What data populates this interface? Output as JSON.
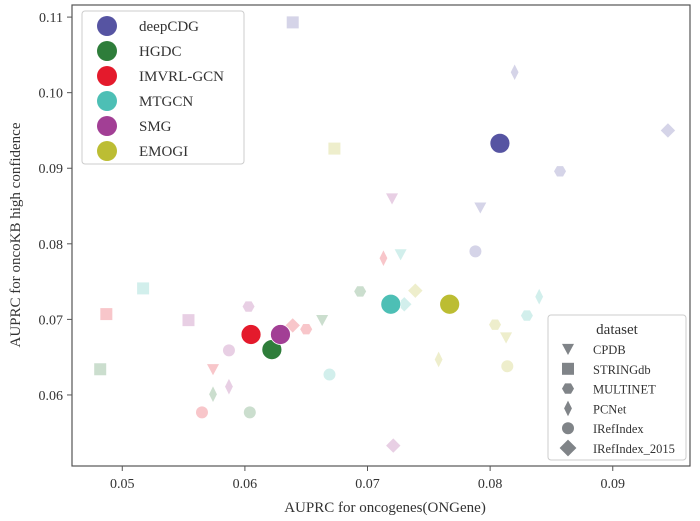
{
  "chart_data": {
    "type": "scatter",
    "title": "",
    "xlabel": "AUPRC for oncogenes(ONGene)",
    "ylabel": "AUPRC for oncoKB high confidence",
    "xlim": [
      0.0459,
      0.0963
    ],
    "ylim": [
      0.0506,
      0.1116
    ],
    "xticks": [
      "0.05",
      "0.06",
      "0.07",
      "0.08",
      "0.09"
    ],
    "yticks": [
      "0.06",
      "0.07",
      "0.08",
      "0.09",
      "0.10",
      "0.11"
    ],
    "grid": false,
    "models": [
      {
        "name": "deepCDG",
        "color": "#5654a2"
      },
      {
        "name": "HGDC",
        "color": "#2e7d3a"
      },
      {
        "name": "IMVRL-GCN",
        "color": "#e41a2c"
      },
      {
        "name": "MTGCN",
        "color": "#4dbfb5"
      },
      {
        "name": "SMG",
        "color": "#a23f95"
      },
      {
        "name": "EMOGI",
        "color": "#bcbd33"
      }
    ],
    "datasets_legend_title": "dataset",
    "datasets": [
      {
        "name": "CPDB",
        "marker": "triangle-down"
      },
      {
        "name": "STRINGdb",
        "marker": "square"
      },
      {
        "name": "MULTINET",
        "marker": "hexagon"
      },
      {
        "name": "PCNet",
        "marker": "thin-diamond"
      },
      {
        "name": "IRefIndex",
        "marker": "circle"
      },
      {
        "name": "IRefIndex_2015",
        "marker": "diamond"
      }
    ],
    "highlight_points": [
      {
        "model": "deepCDG",
        "x": 0.0808,
        "y": 0.0933
      },
      {
        "model": "HGDC",
        "x": 0.0622,
        "y": 0.066
      },
      {
        "model": "IMVRL-GCN",
        "x": 0.0605,
        "y": 0.068
      },
      {
        "model": "MTGCN",
        "x": 0.0719,
        "y": 0.072
      },
      {
        "model": "SMG",
        "x": 0.0629,
        "y": 0.068
      },
      {
        "model": "EMOGI",
        "x": 0.0767,
        "y": 0.072
      }
    ],
    "points": [
      {
        "model": "deepCDG",
        "dataset": "STRINGdb",
        "x": 0.0639,
        "y": 0.1093
      },
      {
        "model": "deepCDG",
        "dataset": "PCNet",
        "x": 0.082,
        "y": 0.1027
      },
      {
        "model": "deepCDG",
        "dataset": "IRefIndex_2015",
        "x": 0.0945,
        "y": 0.095
      },
      {
        "model": "deepCDG",
        "dataset": "MULTINET",
        "x": 0.0857,
        "y": 0.0896
      },
      {
        "model": "deepCDG",
        "dataset": "CPDB",
        "x": 0.0792,
        "y": 0.0848
      },
      {
        "model": "deepCDG",
        "dataset": "IRefIndex",
        "x": 0.0788,
        "y": 0.079
      },
      {
        "model": "HGDC",
        "dataset": "STRINGdb",
        "x": 0.0482,
        "y": 0.0634
      },
      {
        "model": "HGDC",
        "dataset": "MULTINET",
        "x": 0.0694,
        "y": 0.0737
      },
      {
        "model": "HGDC",
        "dataset": "CPDB",
        "x": 0.0663,
        "y": 0.0699
      },
      {
        "model": "HGDC",
        "dataset": "PCNet",
        "x": 0.0574,
        "y": 0.0601
      },
      {
        "model": "HGDC",
        "dataset": "IRefIndex",
        "x": 0.0604,
        "y": 0.0577
      },
      {
        "model": "IMVRL-GCN",
        "dataset": "STRINGdb",
        "x": 0.0487,
        "y": 0.0707
      },
      {
        "model": "IMVRL-GCN",
        "dataset": "CPDB",
        "x": 0.0574,
        "y": 0.0634
      },
      {
        "model": "IMVRL-GCN",
        "dataset": "IRefIndex",
        "x": 0.0565,
        "y": 0.0577
      },
      {
        "model": "IMVRL-GCN",
        "dataset": "IRefIndex_2015",
        "x": 0.0639,
        "y": 0.0692
      },
      {
        "model": "IMVRL-GCN",
        "dataset": "MULTINET",
        "x": 0.065,
        "y": 0.0687
      },
      {
        "model": "IMVRL-GCN",
        "dataset": "PCNet",
        "x": 0.0713,
        "y": 0.0781
      },
      {
        "model": "SMG",
        "dataset": "STRINGdb",
        "x": 0.0554,
        "y": 0.0699
      },
      {
        "model": "SMG",
        "dataset": "MULTINET",
        "x": 0.0603,
        "y": 0.0717
      },
      {
        "model": "SMG",
        "dataset": "IRefIndex",
        "x": 0.0587,
        "y": 0.0659
      },
      {
        "model": "SMG",
        "dataset": "PCNet",
        "x": 0.0587,
        "y": 0.0611
      },
      {
        "model": "SMG",
        "dataset": "CPDB",
        "x": 0.072,
        "y": 0.086
      },
      {
        "model": "SMG",
        "dataset": "IRefIndex_2015",
        "x": 0.0721,
        "y": 0.0533
      },
      {
        "model": "MTGCN",
        "dataset": "STRINGdb",
        "x": 0.0517,
        "y": 0.0741
      },
      {
        "model": "MTGCN",
        "dataset": "IRefIndex",
        "x": 0.0669,
        "y": 0.0627
      },
      {
        "model": "MTGCN",
        "dataset": "CPDB",
        "x": 0.0727,
        "y": 0.0786
      },
      {
        "model": "MTGCN",
        "dataset": "IRefIndex_2015",
        "x": 0.073,
        "y": 0.072
      },
      {
        "model": "MTGCN",
        "dataset": "MULTINET",
        "x": 0.083,
        "y": 0.0705
      },
      {
        "model": "MTGCN",
        "dataset": "PCNet",
        "x": 0.084,
        "y": 0.073
      },
      {
        "model": "EMOGI",
        "dataset": "STRINGdb",
        "x": 0.0673,
        "y": 0.0926
      },
      {
        "model": "EMOGI",
        "dataset": "IRefIndex_2015",
        "x": 0.0739,
        "y": 0.0738
      },
      {
        "model": "EMOGI",
        "dataset": "MULTINET",
        "x": 0.0804,
        "y": 0.0693
      },
      {
        "model": "EMOGI",
        "dataset": "CPDB",
        "x": 0.0813,
        "y": 0.0676
      },
      {
        "model": "EMOGI",
        "dataset": "PCNet",
        "x": 0.0758,
        "y": 0.0647
      },
      {
        "model": "EMOGI",
        "dataset": "IRefIndex",
        "x": 0.0814,
        "y": 0.0638
      }
    ],
    "legend_placement": [
      "top-left",
      "bottom-right"
    ]
  }
}
